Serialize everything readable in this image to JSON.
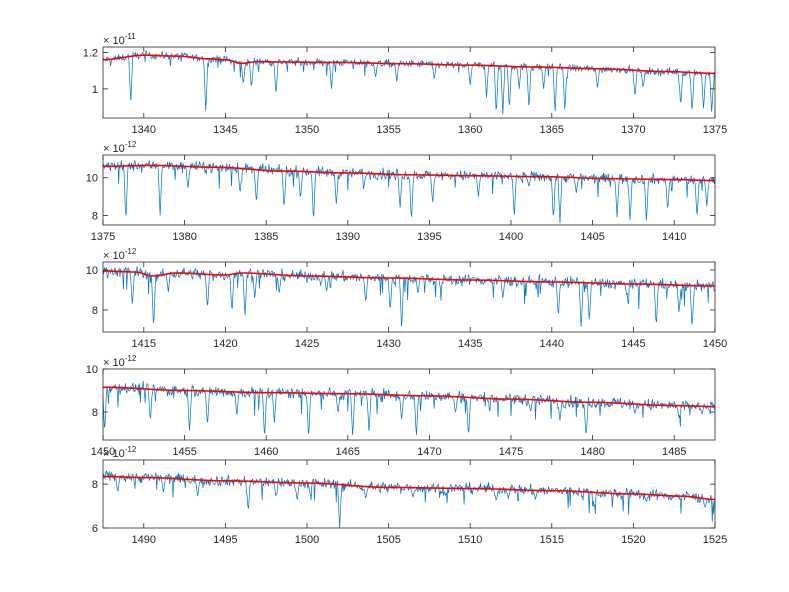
{
  "figure": {
    "colors": {
      "data_line": "#0072BD",
      "fit_line": "#FF0000",
      "axes": "#262626",
      "background": "#FFFFFF"
    }
  },
  "chart_data": [
    {
      "type": "line",
      "xlim": [
        1337.5,
        1375
      ],
      "ylim": [
        0.84,
        1.23
      ],
      "xticks": [
        1340,
        1345,
        1350,
        1355,
        1360,
        1365,
        1370,
        1375
      ],
      "yticks": [
        1,
        1.2
      ],
      "exponent_base": "× 10",
      "exponent_power": "-11",
      "trend": [
        [
          1337.5,
          1.16
        ],
        [
          1340,
          1.185
        ],
        [
          1342,
          1.18
        ],
        [
          1344,
          1.165
        ],
        [
          1345,
          1.16
        ],
        [
          1346,
          1.14
        ],
        [
          1347,
          1.15
        ],
        [
          1348,
          1.148
        ],
        [
          1352,
          1.145
        ],
        [
          1356,
          1.138
        ],
        [
          1360,
          1.13
        ],
        [
          1364,
          1.12
        ],
        [
          1368,
          1.11
        ],
        [
          1372,
          1.095
        ],
        [
          1375,
          1.085
        ]
      ],
      "noise": 0.015,
      "absorption_lines": [
        [
          1339.2,
          0.92
        ],
        [
          1343.8,
          0.86
        ],
        [
          1346.1,
          1.02
        ],
        [
          1346.6,
          1.0
        ],
        [
          1348.1,
          0.96
        ],
        [
          1351.5,
          1.0
        ],
        [
          1354.2,
          1.06
        ],
        [
          1355.5,
          1.04
        ],
        [
          1357.8,
          1.05
        ],
        [
          1360.0,
          1.02
        ],
        [
          1361.0,
          0.95
        ],
        [
          1361.6,
          0.85
        ],
        [
          1362.0,
          0.86
        ],
        [
          1362.4,
          0.88
        ],
        [
          1363.0,
          1.0
        ],
        [
          1363.6,
          0.88
        ],
        [
          1364.5,
          1.0
        ],
        [
          1365.2,
          0.86
        ],
        [
          1365.8,
          0.87
        ],
        [
          1367.8,
          1.0
        ],
        [
          1370.1,
          0.95
        ],
        [
          1370.6,
          1.0
        ],
        [
          1372.9,
          0.9
        ],
        [
          1373.6,
          0.86
        ],
        [
          1374.3,
          0.88
        ],
        [
          1374.8,
          0.86
        ]
      ]
    },
    {
      "type": "line",
      "xlim": [
        1375,
        1412.5
      ],
      "ylim": [
        7.5,
        11.2
      ],
      "xticks": [
        1375,
        1380,
        1385,
        1390,
        1395,
        1400,
        1405,
        1410
      ],
      "yticks": [
        8,
        10
      ],
      "exponent_base": "× 10",
      "exponent_power": "-12",
      "trend": [
        [
          1375,
          10.6
        ],
        [
          1378,
          10.65
        ],
        [
          1382,
          10.55
        ],
        [
          1386,
          10.35
        ],
        [
          1390,
          10.25
        ],
        [
          1394,
          10.15
        ],
        [
          1398,
          10.1
        ],
        [
          1402,
          10.05
        ],
        [
          1406,
          9.95
        ],
        [
          1410,
          9.9
        ],
        [
          1412.5,
          9.85
        ]
      ],
      "noise": 0.2,
      "absorption_lines": [
        [
          1376.4,
          7.6
        ],
        [
          1378.5,
          8.0
        ],
        [
          1380.2,
          9.4
        ],
        [
          1383.4,
          9.1
        ],
        [
          1384.4,
          8.6
        ],
        [
          1386.1,
          8.3
        ],
        [
          1387.1,
          8.8
        ],
        [
          1387.9,
          7.6
        ],
        [
          1389.3,
          8.5
        ],
        [
          1391.0,
          9.6
        ],
        [
          1393.2,
          8.3
        ],
        [
          1393.9,
          7.6
        ],
        [
          1395.2,
          8.6
        ],
        [
          1398.0,
          9.0
        ],
        [
          1400.2,
          7.9
        ],
        [
          1401.1,
          9.5
        ],
        [
          1402.6,
          7.7
        ],
        [
          1403.0,
          7.6
        ],
        [
          1404.0,
          9.2
        ],
        [
          1406.5,
          7.9
        ],
        [
          1407.3,
          7.6
        ],
        [
          1408.3,
          7.6
        ],
        [
          1409.6,
          8.2
        ],
        [
          1411.4,
          7.8
        ],
        [
          1412.0,
          8.5
        ]
      ]
    },
    {
      "type": "line",
      "xlim": [
        1412.5,
        1450
      ],
      "ylim": [
        6.9,
        10.4
      ],
      "xticks": [
        1415,
        1420,
        1425,
        1430,
        1435,
        1440,
        1445,
        1450
      ],
      "yticks": [
        8,
        10
      ],
      "exponent_base": "× 10",
      "exponent_power": "-12",
      "trend": [
        [
          1412.5,
          9.95
        ],
        [
          1414.5,
          9.9
        ],
        [
          1415.5,
          9.7
        ],
        [
          1417,
          9.85
        ],
        [
          1420,
          9.75
        ],
        [
          1421,
          9.85
        ],
        [
          1425,
          9.7
        ],
        [
          1430,
          9.6
        ],
        [
          1435,
          9.5
        ],
        [
          1440,
          9.4
        ],
        [
          1445,
          9.3
        ],
        [
          1450,
          9.2
        ]
      ],
      "noise": 0.2,
      "absorption_lines": [
        [
          1414.3,
          8.2
        ],
        [
          1415.6,
          7.0
        ],
        [
          1416.5,
          8.9
        ],
        [
          1418.9,
          8.0
        ],
        [
          1420.4,
          7.8
        ],
        [
          1421.2,
          7.6
        ],
        [
          1421.8,
          8.5
        ],
        [
          1423.3,
          8.8
        ],
        [
          1426.2,
          8.9
        ],
        [
          1428.6,
          8.3
        ],
        [
          1430.1,
          7.9
        ],
        [
          1430.8,
          7.0
        ],
        [
          1431.8,
          8.8
        ],
        [
          1433.2,
          9.0
        ],
        [
          1437.0,
          8.6
        ],
        [
          1440.4,
          7.6
        ],
        [
          1441.8,
          7.0
        ],
        [
          1442.3,
          7.4
        ],
        [
          1444.6,
          8.7
        ],
        [
          1446.4,
          7.1
        ],
        [
          1447.8,
          7.8
        ],
        [
          1448.6,
          7.0
        ]
      ]
    },
    {
      "type": "line",
      "xlim": [
        1450,
        1487.5
      ],
      "ylim": [
        6.7,
        10.0
      ],
      "xticks": [
        1450,
        1455,
        1460,
        1465,
        1470,
        1475,
        1480,
        1485
      ],
      "yticks": [
        8,
        10
      ],
      "exponent_base": "× 10",
      "exponent_power": "-12",
      "trend": [
        [
          1450,
          9.15
        ],
        [
          1455,
          9.0
        ],
        [
          1460,
          8.9
        ],
        [
          1465,
          8.85
        ],
        [
          1470,
          8.75
        ],
        [
          1475,
          8.6
        ],
        [
          1480,
          8.45
        ],
        [
          1485,
          8.3
        ],
        [
          1487.5,
          8.25
        ]
      ],
      "noise": 0.2,
      "absorption_lines": [
        [
          1450.1,
          7.0
        ],
        [
          1452.9,
          7.5
        ],
        [
          1455.3,
          7.0
        ],
        [
          1456.4,
          7.3
        ],
        [
          1458.2,
          7.8
        ],
        [
          1459.9,
          6.7
        ],
        [
          1460.5,
          7.5
        ],
        [
          1462.6,
          6.7
        ],
        [
          1464.4,
          7.9
        ],
        [
          1465.3,
          6.8
        ],
        [
          1466.3,
          7.0
        ],
        [
          1468.3,
          7.6
        ],
        [
          1469.2,
          6.8
        ],
        [
          1471.6,
          7.9
        ],
        [
          1472.4,
          6.8
        ],
        [
          1476.2,
          8.0
        ],
        [
          1478.0,
          7.6
        ],
        [
          1479.6,
          6.8
        ],
        [
          1482.6,
          7.9
        ],
        [
          1485.3,
          7.7
        ],
        [
          1486.7,
          7.9
        ]
      ]
    },
    {
      "type": "line",
      "xlim": [
        1487.5,
        1525
      ],
      "ylim": [
        6.0,
        9.1
      ],
      "xticks": [
        1490,
        1495,
        1500,
        1505,
        1510,
        1515,
        1520,
        1525
      ],
      "yticks": [
        6,
        8
      ],
      "exponent_base": "× 10",
      "exponent_power": "-12",
      "trend": [
        [
          1487.5,
          8.35
        ],
        [
          1490,
          8.3
        ],
        [
          1495,
          8.15
        ],
        [
          1500,
          8.05
        ],
        [
          1505,
          7.85
        ],
        [
          1510,
          7.8
        ],
        [
          1515,
          7.7
        ],
        [
          1520,
          7.55
        ],
        [
          1523,
          7.45
        ],
        [
          1525,
          7.3
        ]
      ],
      "noise": 0.18,
      "absorption_lines": [
        [
          1488.4,
          7.6
        ],
        [
          1491.2,
          7.6
        ],
        [
          1493.3,
          7.4
        ],
        [
          1496.4,
          6.7
        ],
        [
          1498.1,
          7.4
        ],
        [
          1499.4,
          7.2
        ],
        [
          1500.2,
          7.5
        ],
        [
          1502.0,
          6.0
        ],
        [
          1503.6,
          7.3
        ],
        [
          1506.5,
          7.4
        ],
        [
          1508.5,
          7.5
        ],
        [
          1511.6,
          7.2
        ],
        [
          1514.0,
          7.3
        ],
        [
          1517.6,
          6.9
        ],
        [
          1520.8,
          7.2
        ],
        [
          1524.4,
          6.9
        ]
      ]
    }
  ]
}
